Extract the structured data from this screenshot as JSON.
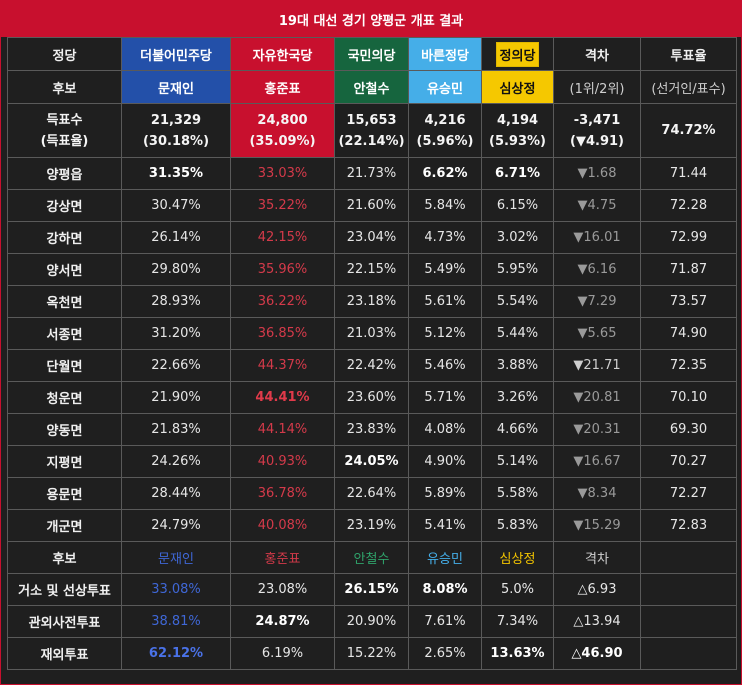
{
  "title": "19대 대선 경기 양평군 개표 결과",
  "colors": {
    "democratic": "#2350a9",
    "liberty": "#c8102e",
    "people": "#16653e",
    "bareun": "#45aee8",
    "justice": "#f5c800"
  },
  "header": {
    "party_label": "정당",
    "candidate_label": "후보",
    "parties": [
      "더불어민주당",
      "자유한국당",
      "국민의당",
      "바른정당",
      "정의당"
    ],
    "candidates": [
      "문재인",
      "홍준표",
      "안철수",
      "유승민",
      "심상정"
    ],
    "gap_label": "격차",
    "gap_sub": "(1위/2위)",
    "turnout_label": "투표율",
    "turnout_sub": "(선거인/표수)"
  },
  "votes": {
    "label1": "득표수",
    "label2": "(득표율)",
    "counts": [
      "21,329",
      "24,800",
      "15,653",
      "4,216",
      "4,194"
    ],
    "rates": [
      "(30.18%)",
      "(35.09%)",
      "(22.14%)",
      "(5.96%)",
      "(5.93%)"
    ],
    "gap_count": "-3,471",
    "gap_rate": "(▼4.91)",
    "turnout": "74.72%"
  },
  "regions": [
    {
      "name": "양평읍",
      "v": [
        "31.35%",
        "33.03%",
        "21.73%",
        "6.62%",
        "6.71%"
      ],
      "gap": "▼1.68",
      "turnout": "71.44"
    },
    {
      "name": "강상면",
      "v": [
        "30.47%",
        "35.22%",
        "21.60%",
        "5.84%",
        "6.15%"
      ],
      "gap": "▼4.75",
      "turnout": "72.28"
    },
    {
      "name": "강하면",
      "v": [
        "26.14%",
        "42.15%",
        "23.04%",
        "4.73%",
        "3.02%"
      ],
      "gap": "▼16.01",
      "turnout": "72.99"
    },
    {
      "name": "양서면",
      "v": [
        "29.80%",
        "35.96%",
        "22.15%",
        "5.49%",
        "5.95%"
      ],
      "gap": "▼6.16",
      "turnout": "71.87"
    },
    {
      "name": "옥천면",
      "v": [
        "28.93%",
        "36.22%",
        "23.18%",
        "5.61%",
        "5.54%"
      ],
      "gap": "▼7.29",
      "turnout": "73.57"
    },
    {
      "name": "서종면",
      "v": [
        "31.20%",
        "36.85%",
        "21.03%",
        "5.12%",
        "5.44%"
      ],
      "gap": "▼5.65",
      "turnout": "74.90"
    },
    {
      "name": "단월면",
      "v": [
        "22.66%",
        "44.37%",
        "22.42%",
        "5.46%",
        "3.88%"
      ],
      "gap": "▼21.71",
      "turnout": "72.35"
    },
    {
      "name": "청운면",
      "v": [
        "21.90%",
        "44.41%",
        "23.60%",
        "5.71%",
        "3.26%"
      ],
      "gap": "▼20.81",
      "turnout": "70.10"
    },
    {
      "name": "양동면",
      "v": [
        "21.83%",
        "44.14%",
        "23.83%",
        "4.08%",
        "4.66%"
      ],
      "gap": "▼20.31",
      "turnout": "69.30"
    },
    {
      "name": "지평면",
      "v": [
        "24.26%",
        "40.93%",
        "24.05%",
        "4.90%",
        "5.14%"
      ],
      "gap": "▼16.67",
      "turnout": "70.27"
    },
    {
      "name": "용문면",
      "v": [
        "28.44%",
        "36.78%",
        "22.64%",
        "5.89%",
        "5.58%"
      ],
      "gap": "▼8.34",
      "turnout": "72.27"
    },
    {
      "name": "개군면",
      "v": [
        "24.79%",
        "40.08%",
        "23.19%",
        "5.41%",
        "5.83%"
      ],
      "gap": "▼15.29",
      "turnout": "72.83"
    }
  ],
  "sub_header": {
    "label": "후보",
    "candidates": [
      "문재인",
      "홍준표",
      "안철수",
      "유승민",
      "심상정"
    ],
    "gap": "격차"
  },
  "special": [
    {
      "name": "거소 및 선상투표",
      "v": [
        "33.08%",
        "23.08%",
        "26.15%",
        "8.08%",
        "5.0%"
      ],
      "gap": "△6.93"
    },
    {
      "name": "관외사전투표",
      "v": [
        "38.81%",
        "24.87%",
        "20.90%",
        "7.61%",
        "7.34%"
      ],
      "gap": "△13.94"
    },
    {
      "name": "재외투표",
      "v": [
        "62.12%",
        "6.19%",
        "15.22%",
        "2.65%",
        "13.63%"
      ],
      "gap": "△46.90"
    }
  ]
}
